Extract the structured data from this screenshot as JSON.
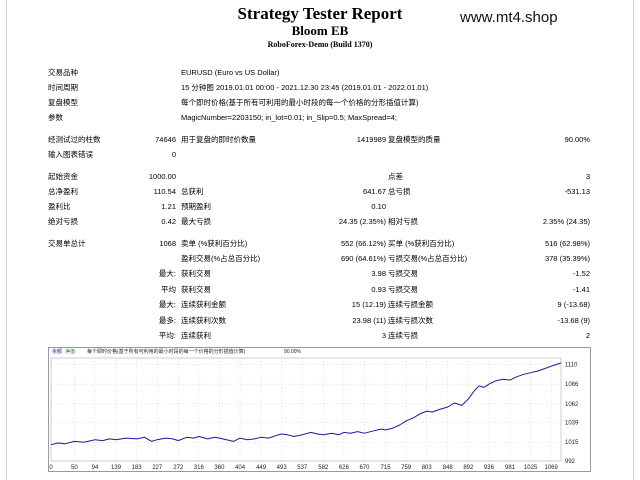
{
  "header": {
    "title": "Strategy Tester Report",
    "subtitle": "Bloom EB",
    "server": "RoboForex-Demo (Build 1370)",
    "watermark": "www.mt4.shop"
  },
  "info": {
    "symbol_label": "交易品种",
    "symbol_value": "EURUSD (Euro vs US Dollar)",
    "period_label": "时间周期",
    "period_value": "15 分钟图 2019.01.01 00:00 - 2021.12.30 23:45 (2019.01.01 - 2022.01.01)",
    "model_label": "复盘模型",
    "model_value": "每个即时价格(基于所有可利用的最小时段的每一个价格的分形插值计算)",
    "params_label": "参数",
    "params_value": "MagicNumber=2203150; in_lot=0.01; in_Slip=0.5; MaxSpread=4;"
  },
  "stats": {
    "bars_label": "经测试过的柱数",
    "bars_value": "74646",
    "ticks_label": "用于复盘的即时价数量",
    "ticks_value": "1419989",
    "quality_label": "复盘模型的质量",
    "quality_value": "90.00%",
    "errors_label": "输入图表错误",
    "errors_value": "0",
    "deposit_label": "起始资金",
    "deposit_value": "1000.00",
    "spread_label": "点差",
    "spread_value": "3",
    "netprofit_label": "总净盈利",
    "netprofit_value": "110.54",
    "grossprofit_label": "总获利",
    "grossprofit_value": "641.67",
    "grossloss_label": "总亏损",
    "grossloss_value": "-531.13",
    "pf_label": "盈利比",
    "pf_value": "1.21",
    "expected_label": "预期盈利",
    "expected_value": "0.10",
    "absdd_label": "绝对亏损",
    "absdd_value": "0.42",
    "maxdd_label": "最大亏损",
    "maxdd_value": "24.35 (2.35%)",
    "reldd_label": "相对亏损",
    "reldd_value": "2.35% (24.35)",
    "trades_label": "交易单总计",
    "trades_value": "1068",
    "short_label": "卖单 (%获利百分比)",
    "short_value": "552 (66.12%)",
    "long_label": "买单 (%获利百分比)",
    "long_value": "516 (62.98%)",
    "profit_trades_label": "盈利交易(%占总百分比)",
    "profit_trades_value": "690 (64.61%)",
    "loss_trades_label": "亏损交易(%占总百分比)",
    "loss_trades_value": "378 (35.39%)",
    "largest_prefix": "最大:",
    "largest_profit_label": "获利交易",
    "largest_profit_value": "3.98",
    "largest_loss_label": "亏损交易",
    "largest_loss_value": "-1.52",
    "average_prefix": "平均",
    "avg_profit_label": "获利交易",
    "avg_profit_value": "0.93",
    "avg_loss_label": "亏损交易",
    "avg_loss_value": "-1.41",
    "maxcons_prefix": "最大:",
    "maxcons_wins_label": "连续获利金额",
    "maxcons_wins_value": "15 (12.19)",
    "maxcons_losses_label": "连续亏损金额",
    "maxcons_losses_value": "9 (-13.68)",
    "maximal_prefix": "最多:",
    "maximal_profit_label": "连续获利次数",
    "maximal_profit_value": "23.98 (11)",
    "maximal_loss_label": "连续亏损次数",
    "maximal_loss_value": "-13.68 (9)",
    "avgcons_prefix": "平均:",
    "avgcons_wins_label": "连续获利",
    "avgcons_wins_value": "3",
    "avgcons_losses_label": "连续亏损",
    "avgcons_losses_value": "2"
  },
  "chart_header": {
    "balance_label": "余额",
    "equity_label": "净值",
    "model_text": "每个即时价格(基于所有可利用的最小时段的每一个价格的分形插值计算)",
    "quality_text": "90.00%"
  },
  "chart_data": {
    "type": "line",
    "x_ticks": [
      0,
      50,
      94,
      139,
      183,
      227,
      272,
      316,
      360,
      404,
      449,
      493,
      537,
      582,
      626,
      670,
      715,
      759,
      803,
      848,
      892,
      936,
      981,
      1025,
      1069
    ],
    "y_ticks": [
      992,
      1015,
      1039,
      1062,
      1086,
      1110
    ],
    "xlim": [
      0,
      1090
    ],
    "ylim": [
      992,
      1118
    ],
    "series": [
      {
        "color": "#1a1aa0",
        "x": [
          0,
          15,
          30,
          50,
          70,
          94,
          110,
          125,
          139,
          160,
          183,
          200,
          215,
          227,
          245,
          260,
          272,
          290,
          305,
          316,
          335,
          350,
          360,
          375,
          390,
          404,
          420,
          435,
          449,
          465,
          480,
          493,
          505,
          520,
          537,
          555,
          570,
          582,
          600,
          615,
          626,
          640,
          655,
          670,
          690,
          705,
          715,
          730,
          745,
          759,
          775,
          790,
          803,
          815,
          830,
          848,
          862,
          878,
          892,
          905,
          915,
          925,
          936,
          950,
          965,
          981,
          995,
          1010,
          1025,
          1040,
          1055,
          1069,
          1080,
          1090
        ],
        "y": [
          1012,
          1014,
          1013,
          1016,
          1015,
          1018,
          1017,
          1019,
          1018,
          1020,
          1019,
          1021,
          1016,
          1018,
          1020,
          1019,
          1017,
          1021,
          1020,
          1022,
          1019,
          1021,
          1020,
          1018,
          1016,
          1020,
          1018,
          1019,
          1021,
          1020,
          1023,
          1025,
          1024,
          1022,
          1024,
          1027,
          1025,
          1024,
          1026,
          1024,
          1027,
          1026,
          1028,
          1026,
          1029,
          1031,
          1030,
          1032,
          1036,
          1041,
          1045,
          1050,
          1053,
          1052,
          1055,
          1058,
          1063,
          1060,
          1068,
          1078,
          1084,
          1082,
          1086,
          1090,
          1092,
          1091,
          1095,
          1098,
          1100,
          1102,
          1105,
          1108,
          1110,
          1112
        ]
      }
    ]
  }
}
